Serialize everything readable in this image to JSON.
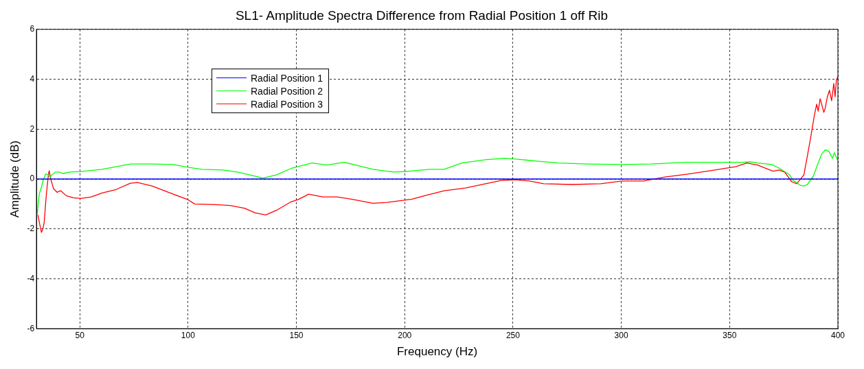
{
  "chart_data": {
    "type": "line",
    "title": "SL1- Amplitude Spectra Difference from Radial Position 1 off Rib",
    "xlabel": "Frequency (Hz)",
    "ylabel": "Amplitude (dB)",
    "xlim": [
      30,
      400
    ],
    "xticks": [
      50,
      100,
      150,
      200,
      250,
      300,
      350,
      400
    ],
    "ylim": [
      -6,
      6
    ],
    "yticks": [
      -6,
      -4,
      -2,
      0,
      2,
      4,
      6
    ],
    "grid": true,
    "legend": "top left",
    "line_style": "solid",
    "marker": "none",
    "series": [
      {
        "name": "Radial Position 1",
        "color": "#0000ff",
        "x": [
          30,
          400
        ],
        "values": [
          0,
          0
        ]
      },
      {
        "name": "Radial Position 2",
        "color": "#00ff00",
        "x": [
          30.3,
          31.3,
          32.3,
          33.3,
          34.3,
          35.3,
          36.3,
          37.2,
          38.9,
          40.5,
          42.2,
          45.5,
          50.4,
          60.3,
          73.4,
          83.3,
          93.2,
          100,
          106.3,
          116.2,
          122.8,
          132.6,
          134.3,
          140.9,
          147.4,
          150.7,
          157.3,
          163.9,
          172.1,
          178.7,
          185.3,
          191.8,
          195.1,
          201.7,
          211.6,
          218.2,
          226.4,
          237.9,
          246.1,
          251.1,
          260.9,
          270.8,
          284,
          300.4,
          313.6,
          330,
          356.3,
          359.6,
          362.9,
          369.5,
          372.8,
          377.7,
          379.3,
          382.6,
          384.3,
          385.9,
          388.6,
          390.9,
          392.5,
          394.2,
          395.8,
          397.5,
          398.4,
          399.7
        ],
        "values": [
          -1.44,
          -0.6,
          -0.33,
          0,
          0.2,
          0.17,
          0.08,
          0.17,
          0.28,
          0.28,
          0.22,
          0.28,
          0.3,
          0.39,
          0.6,
          0.6,
          0.58,
          0.47,
          0.39,
          0.36,
          0.28,
          0.08,
          0.03,
          0.17,
          0.42,
          0.5,
          0.64,
          0.56,
          0.67,
          0.53,
          0.39,
          0.31,
          0.28,
          0.31,
          0.39,
          0.39,
          0.64,
          0.78,
          0.83,
          0.8,
          0.72,
          0.64,
          0.6,
          0.58,
          0.6,
          0.67,
          0.67,
          0.69,
          0.64,
          0.58,
          0.44,
          0.17,
          -0.05,
          -0.25,
          -0.28,
          -0.22,
          0.11,
          0.64,
          1,
          1.17,
          1.11,
          0.83,
          1.06,
          0.78
        ]
      },
      {
        "name": "Radial Position 3",
        "color": "#ff0000",
        "x": [
          30.7,
          31.3,
          32.3,
          33,
          33.6,
          34.3,
          34.9,
          35.6,
          35.9,
          36.6,
          37.9,
          39.5,
          41.2,
          43.8,
          47.1,
          50.4,
          55.3,
          60.3,
          66.8,
          73.4,
          76.7,
          83.3,
          93.2,
          100,
          103,
          112.9,
          119.5,
          126.1,
          131,
          135.9,
          140.9,
          147.4,
          150.7,
          155.7,
          162.2,
          168.8,
          175.4,
          185.3,
          191.8,
          203.4,
          208.3,
          218.2,
          228,
          244.5,
          251.1,
          257.6,
          264.2,
          277.4,
          290.5,
          300.4,
          310.3,
          320.1,
          330,
          343.2,
          353,
          358,
          362.9,
          370.1,
          372.8,
          375.4,
          378.7,
          381,
          384.3,
          385.9,
          387.6,
          389.2,
          390.2,
          390.9,
          391.8,
          392.5,
          393.5,
          394.2,
          395.1,
          396.1,
          397.1,
          398.1,
          398.7,
          399.3,
          400
        ],
        "values": [
          -1.44,
          -1.72,
          -2.14,
          -2,
          -1.72,
          -0.89,
          -0.33,
          0.22,
          0.33,
          0,
          -0.39,
          -0.53,
          -0.47,
          -0.67,
          -0.75,
          -0.78,
          -0.72,
          -0.56,
          -0.42,
          -0.17,
          -0.14,
          -0.28,
          -0.61,
          -0.83,
          -1,
          -1.03,
          -1.06,
          -1.17,
          -1.36,
          -1.44,
          -1.25,
          -0.92,
          -0.83,
          -0.61,
          -0.72,
          -0.72,
          -0.81,
          -0.97,
          -0.94,
          -0.81,
          -0.69,
          -0.47,
          -0.36,
          -0.06,
          -0.03,
          -0.08,
          -0.19,
          -0.22,
          -0.19,
          -0.08,
          -0.08,
          0.08,
          0.19,
          0.36,
          0.5,
          0.64,
          0.56,
          0.31,
          0.36,
          0.28,
          -0.11,
          -0.19,
          0.17,
          0.92,
          1.75,
          2.58,
          3,
          2.72,
          3.22,
          3,
          2.67,
          2.86,
          3.28,
          3.56,
          3.14,
          3.83,
          3.3,
          3.97,
          4.1
        ]
      }
    ]
  }
}
